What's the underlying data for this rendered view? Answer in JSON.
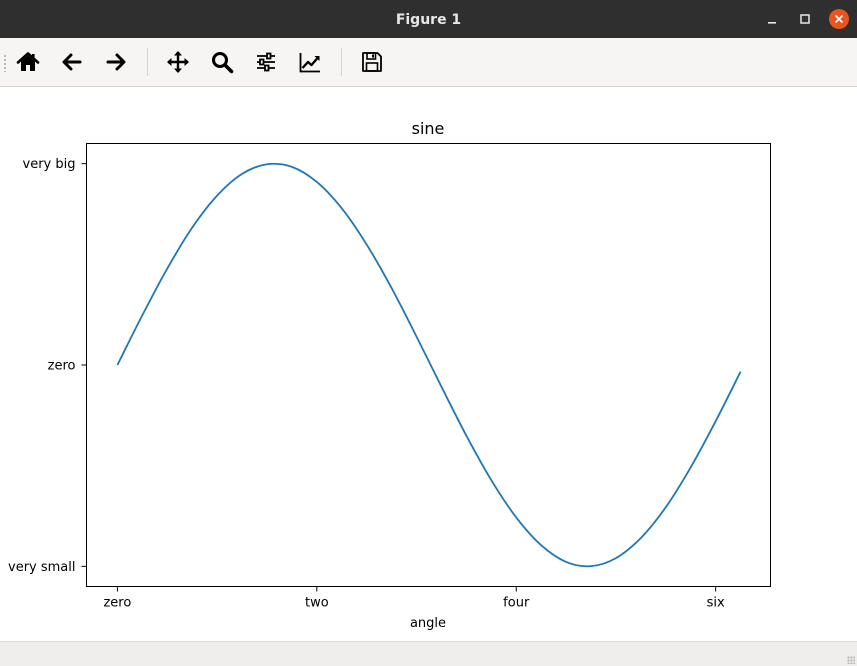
{
  "window": {
    "title": "Figure 1"
  },
  "toolbar": {
    "buttons": [
      {
        "name": "home",
        "icon": "home-icon"
      },
      {
        "name": "back",
        "icon": "arrow-left-icon"
      },
      {
        "name": "forward",
        "icon": "arrow-right-icon"
      },
      {
        "name": "pan",
        "icon": "move-icon"
      },
      {
        "name": "zoom",
        "icon": "magnifier-icon"
      },
      {
        "name": "subplots",
        "icon": "sliders-icon"
      },
      {
        "name": "edit-axes",
        "icon": "line-chart-icon"
      },
      {
        "name": "save",
        "icon": "floppy-disk-icon"
      }
    ]
  },
  "chart_data": {
    "type": "line",
    "title": "sine",
    "xlabel": "angle",
    "ylabel": "",
    "x_ticks": [
      {
        "value": 0,
        "label": "zero"
      },
      {
        "value": 2,
        "label": "two"
      },
      {
        "value": 4,
        "label": "four"
      },
      {
        "value": 6,
        "label": "six"
      }
    ],
    "y_ticks": [
      {
        "value": -1,
        "label": "very small"
      },
      {
        "value": 0,
        "label": "zero"
      },
      {
        "value": 1,
        "label": "very big"
      }
    ],
    "xlim": [
      -0.31,
      6.55
    ],
    "ylim": [
      -1.1,
      1.1
    ],
    "grid": false,
    "series": [
      {
        "color": "#1f77b4",
        "x": [
          0,
          0.25,
          0.5,
          0.75,
          1,
          1.25,
          1.5,
          1.75,
          2,
          2.25,
          2.5,
          2.75,
          3,
          3.25,
          3.5,
          3.75,
          4,
          4.25,
          4.5,
          4.75,
          5,
          5.25,
          5.5,
          5.75,
          6,
          6.25
        ],
        "y": [
          0,
          0.247,
          0.479,
          0.682,
          0.841,
          0.949,
          0.997,
          0.984,
          0.909,
          0.778,
          0.598,
          0.382,
          0.141,
          -0.108,
          -0.351,
          -0.572,
          -0.757,
          -0.895,
          -0.978,
          -0.999,
          -0.959,
          -0.859,
          -0.706,
          -0.508,
          -0.279,
          -0.033
        ]
      }
    ]
  }
}
